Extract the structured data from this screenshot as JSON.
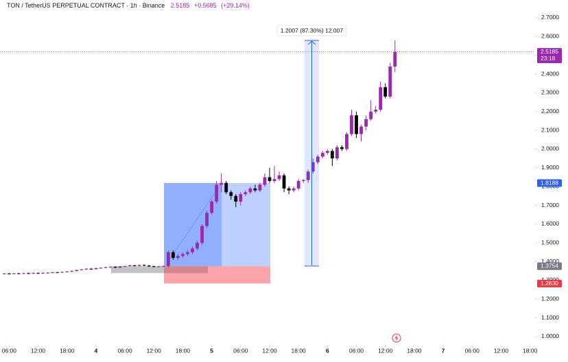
{
  "header": {
    "symbol": "TON / TetherUS PERPETUAL CONTRACT · 1h · Binance",
    "last": "2.5185",
    "change": "+0.5685",
    "change_pct": "(+29.14%)"
  },
  "chart_data": {
    "type": "candlestick",
    "up_color": "#9c27b0",
    "down_color": "#000000",
    "x": [
      -19,
      -18,
      -17,
      -16,
      -15,
      -14,
      -13,
      -12,
      -11,
      -10,
      -9,
      -8,
      -7,
      -6,
      -5,
      -4,
      -3,
      -2,
      -1,
      0,
      1,
      2,
      3,
      4,
      5,
      6,
      7,
      8,
      9,
      10,
      11,
      12,
      13,
      14,
      15,
      16,
      17,
      18,
      19,
      20,
      21,
      22,
      23,
      24,
      25,
      26,
      27,
      28,
      29,
      30,
      31,
      32,
      33,
      34,
      35,
      36,
      37,
      38,
      39,
      40,
      41,
      42,
      43,
      44,
      45,
      46,
      47,
      48,
      49,
      50,
      51,
      52,
      53,
      54,
      55,
      56,
      57,
      58,
      59,
      60,
      61,
      62
    ],
    "open": [
      1.335,
      1.336,
      1.335,
      1.337,
      1.336,
      1.338,
      1.337,
      1.339,
      1.338,
      1.34,
      1.341,
      1.343,
      1.342,
      1.345,
      1.347,
      1.35,
      1.355,
      1.358,
      1.362,
      1.36,
      1.365,
      1.367,
      1.37,
      1.372,
      1.368,
      1.374,
      1.376,
      1.38,
      1.377,
      1.382,
      1.379,
      1.375,
      1.372,
      1.374,
      1.376,
      1.45,
      1.42,
      1.43,
      1.44,
      1.45,
      1.47,
      1.5,
      1.59,
      1.66,
      1.72,
      1.81,
      1.82,
      1.77,
      1.75,
      1.72,
      1.76,
      1.77,
      1.79,
      1.78,
      1.81,
      1.85,
      1.83,
      1.84,
      1.86,
      1.79,
      1.78,
      1.79,
      1.83,
      1.835,
      1.88,
      1.93,
      1.96,
      1.98,
      1.99,
      1.95,
      2.01,
      2.0,
      2.08,
      2.18,
      2.08,
      2.12,
      2.16,
      2.2,
      2.21,
      2.33,
      2.28,
      2.44
    ],
    "high": [
      1.339,
      1.339,
      1.34,
      1.34,
      1.341,
      1.341,
      1.342,
      1.342,
      1.343,
      1.344,
      1.346,
      1.346,
      1.348,
      1.35,
      1.353,
      1.358,
      1.361,
      1.365,
      1.365,
      1.368,
      1.37,
      1.373,
      1.375,
      1.375,
      1.377,
      1.379,
      1.383,
      1.383,
      1.385,
      1.385,
      1.382,
      1.378,
      1.377,
      1.379,
      1.46,
      1.46,
      1.44,
      1.45,
      1.46,
      1.48,
      1.51,
      1.6,
      1.67,
      1.73,
      1.83,
      1.87,
      1.83,
      1.78,
      1.76,
      1.77,
      1.78,
      1.8,
      1.81,
      1.82,
      1.87,
      1.9,
      1.91,
      1.88,
      1.87,
      1.8,
      1.8,
      1.84,
      1.84,
      1.89,
      1.95,
      1.97,
      1.99,
      2.0,
      2.0,
      2.02,
      2.02,
      2.09,
      2.21,
      2.2,
      2.13,
      2.18,
      2.26,
      2.23,
      2.36,
      2.35,
      2.46,
      2.58
    ],
    "low": [
      1.332,
      1.332,
      1.332,
      1.333,
      1.333,
      1.334,
      1.334,
      1.335,
      1.335,
      1.337,
      1.338,
      1.339,
      1.339,
      1.342,
      1.344,
      1.347,
      1.352,
      1.355,
      1.357,
      1.357,
      1.362,
      1.364,
      1.367,
      1.365,
      1.365,
      1.371,
      1.373,
      1.374,
      1.374,
      1.376,
      1.372,
      1.369,
      1.369,
      1.371,
      1.37,
      1.41,
      1.41,
      1.42,
      1.43,
      1.44,
      1.46,
      1.49,
      1.58,
      1.65,
      1.71,
      1.77,
      1.76,
      1.73,
      1.69,
      1.7,
      1.75,
      1.76,
      1.77,
      1.77,
      1.8,
      1.82,
      1.82,
      1.83,
      1.77,
      1.76,
      1.77,
      1.78,
      1.82,
      1.82,
      1.87,
      1.92,
      1.95,
      1.97,
      1.91,
      1.94,
      1.99,
      1.99,
      2.07,
      2.06,
      2.04,
      2.1,
      2.15,
      2.19,
      2.2,
      2.27,
      2.27,
      2.41
    ],
    "close": [
      1.336,
      1.335,
      1.337,
      1.336,
      1.338,
      1.337,
      1.339,
      1.338,
      1.34,
      1.341,
      1.343,
      1.342,
      1.345,
      1.347,
      1.35,
      1.355,
      1.358,
      1.362,
      1.36,
      1.365,
      1.367,
      1.37,
      1.372,
      1.368,
      1.374,
      1.376,
      1.38,
      1.377,
      1.382,
      1.379,
      1.375,
      1.372,
      1.374,
      1.376,
      1.45,
      1.42,
      1.43,
      1.44,
      1.45,
      1.47,
      1.5,
      1.59,
      1.66,
      1.72,
      1.81,
      1.82,
      1.77,
      1.75,
      1.72,
      1.76,
      1.77,
      1.79,
      1.78,
      1.81,
      1.85,
      1.83,
      1.84,
      1.86,
      1.79,
      1.78,
      1.79,
      1.83,
      1.835,
      1.88,
      1.93,
      1.96,
      1.98,
      1.99,
      1.95,
      2.01,
      2.0,
      2.08,
      2.18,
      2.08,
      2.12,
      2.16,
      2.2,
      2.21,
      2.33,
      2.28,
      2.44,
      2.5185
    ],
    "xlim": [
      -19.9,
      91.05
    ],
    "ylim": [
      0.967,
      2.795
    ],
    "xticks": [
      {
        "value": -18,
        "label": "06:00"
      },
      {
        "value": -12,
        "label": "12:00"
      },
      {
        "value": -6,
        "label": "18:00"
      },
      {
        "value": 0,
        "label": "4"
      },
      {
        "value": 6,
        "label": "06:00"
      },
      {
        "value": 12,
        "label": "12:00"
      },
      {
        "value": 18,
        "label": "18:00"
      },
      {
        "value": 24,
        "label": "5"
      },
      {
        "value": 30,
        "label": "06:00"
      },
      {
        "value": 36,
        "label": "12:00"
      },
      {
        "value": 42,
        "label": "18:00"
      },
      {
        "value": 48,
        "label": "6"
      },
      {
        "value": 54,
        "label": "06:00"
      },
      {
        "value": 60,
        "label": "12:00"
      },
      {
        "value": 66,
        "label": "18:00"
      },
      {
        "value": 72,
        "label": "7"
      },
      {
        "value": 78,
        "label": "06:00"
      },
      {
        "value": 84,
        "label": "12:00"
      },
      {
        "value": 90,
        "label": "18:00"
      }
    ],
    "yticks": [
      {
        "value": 1.0,
        "label": "1.0000"
      },
      {
        "value": 1.1,
        "label": "1.1000"
      },
      {
        "value": 1.2,
        "label": "1.2000"
      },
      {
        "value": 1.3,
        "label": "1.3000"
      },
      {
        "value": 1.4,
        "label": "1.4000"
      },
      {
        "value": 1.5,
        "label": "1.5000"
      },
      {
        "value": 1.6,
        "label": "1.6000"
      },
      {
        "value": 1.7,
        "label": "1.7000"
      },
      {
        "value": 1.8,
        "label": "1.8000"
      },
      {
        "value": 1.9,
        "label": "1.9000"
      },
      {
        "value": 2.0,
        "label": "2.0000"
      },
      {
        "value": 2.1,
        "label": "2.1000"
      },
      {
        "value": 2.2,
        "label": "2.2000"
      },
      {
        "value": 2.3,
        "label": "2.3000"
      },
      {
        "value": 2.4,
        "label": "2.4000"
      },
      {
        "value": 2.5,
        "label": "2.5000"
      },
      {
        "value": 2.6,
        "label": "2.6000"
      },
      {
        "value": 2.7,
        "label": "2.7000"
      }
    ],
    "price_labels": [
      {
        "value": 2.5185,
        "label": "2.5185",
        "color": "#9c27b0"
      },
      {
        "value": 1.8188,
        "label": "1.8188",
        "color": "#2962ff"
      },
      {
        "value": 1.3754,
        "label": "1.3754",
        "color": "#787b86"
      },
      {
        "value": 1.283,
        "label": "1.2830",
        "color": "#f23645"
      }
    ],
    "countdown": "23:18",
    "measure_label": "1.2007 (87.30%) 12,007"
  }
}
